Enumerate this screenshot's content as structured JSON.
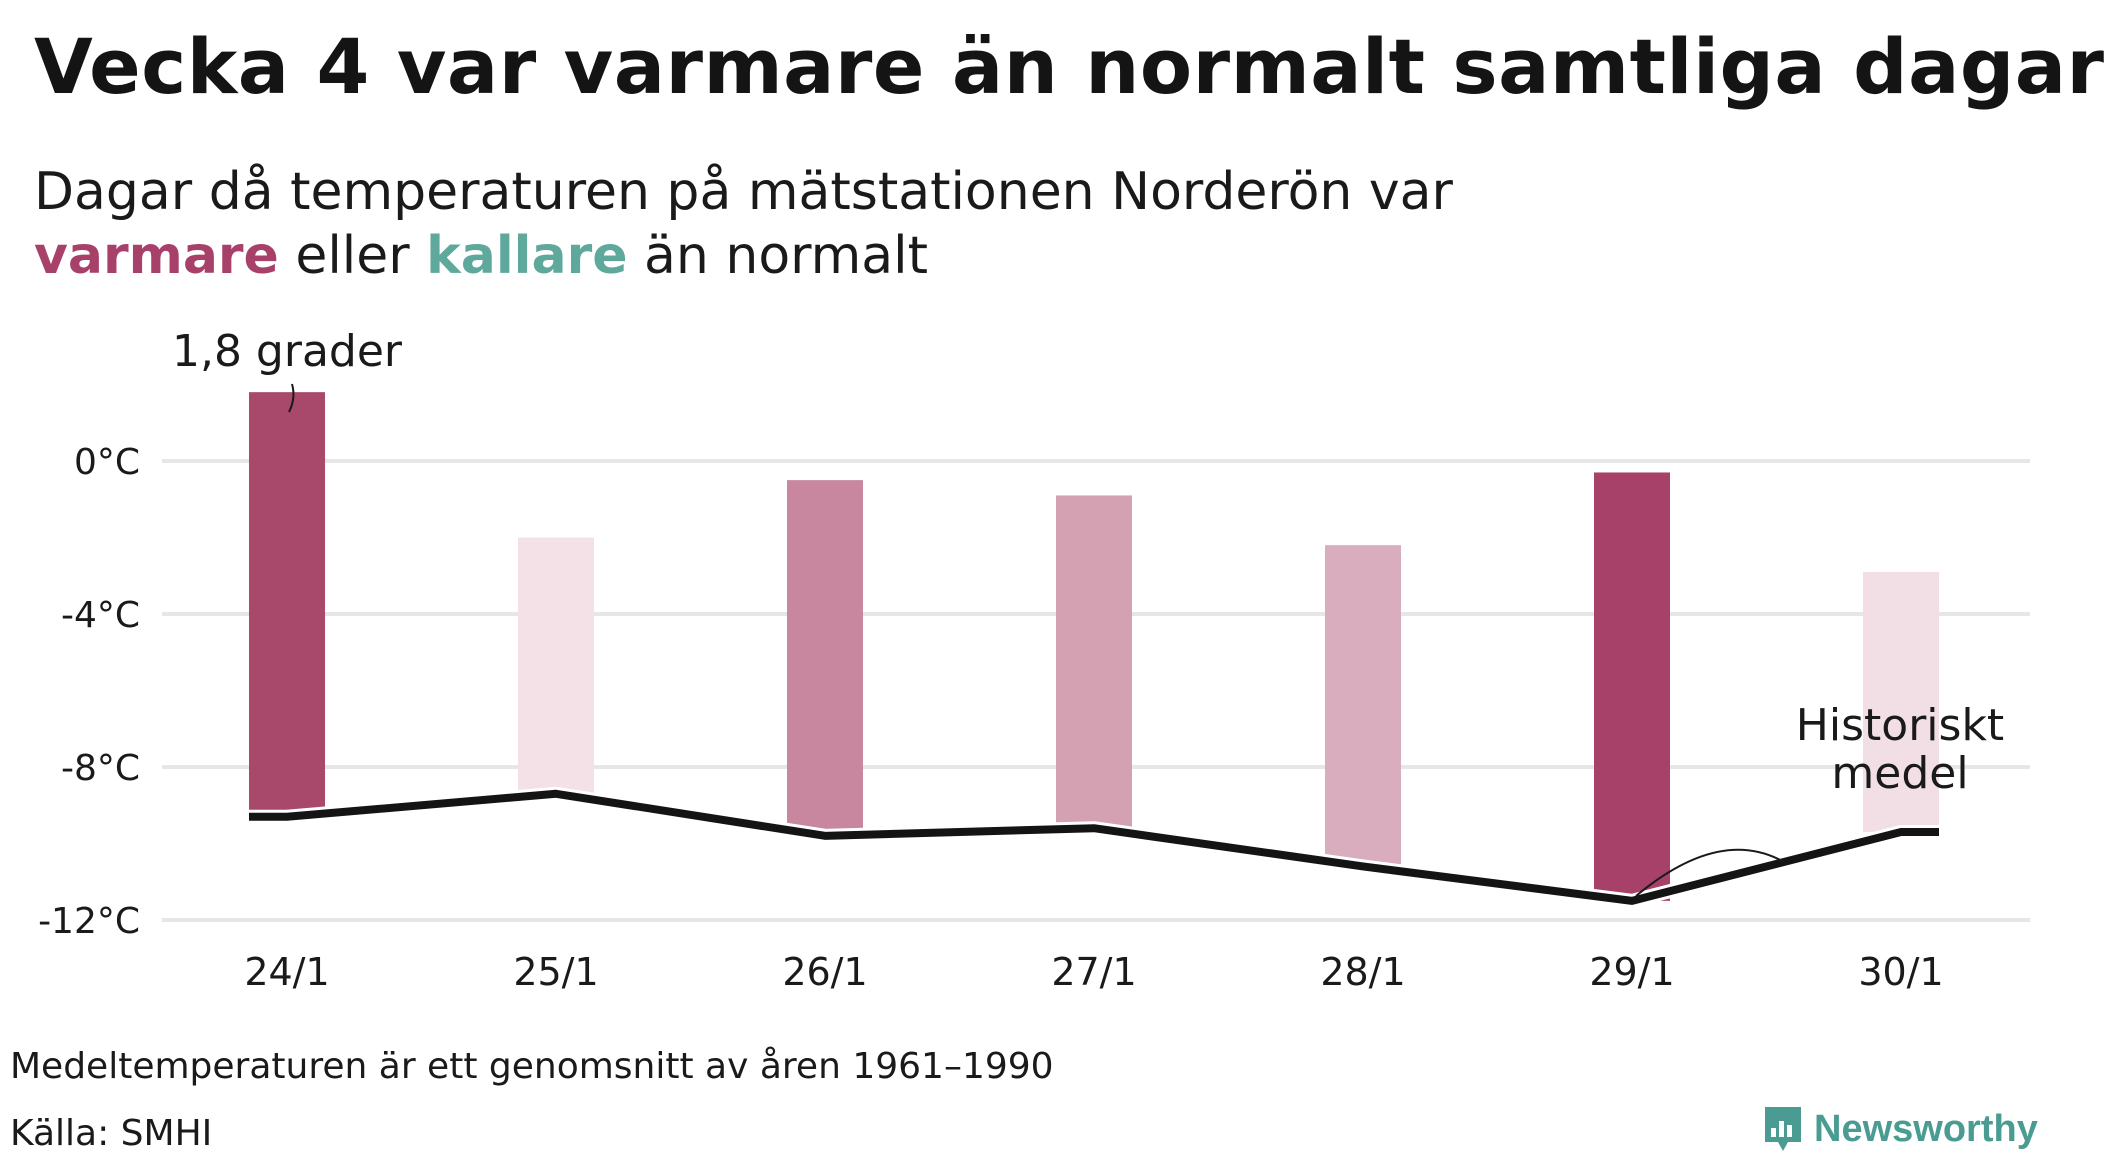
{
  "title": "Vecka 4 var varmare än normalt samtliga dagar",
  "subtitle": {
    "line1": "Dagar då temperaturen på mätstationen Norderön var",
    "warm_word": "varmare",
    "or_word": "eller",
    "cold_word": "kallare",
    "tail": "än normalt"
  },
  "colors": {
    "warm_text": "#a8416a",
    "cold_text": "#5fa89c",
    "mean_line": "#141414",
    "grid": "#e6e6e6"
  },
  "chart_data": {
    "type": "bar",
    "categories": [
      "24/1",
      "25/1",
      "26/1",
      "27/1",
      "28/1",
      "29/1",
      "30/1"
    ],
    "series": [
      {
        "values": [
          1.8,
          -2.0,
          -0.5,
          -0.9,
          -2.2,
          -0.3,
          -2.9
        ]
      },
      {
        "name": "Historiskt medel",
        "values": [
          -9.3,
          -8.7,
          -9.8,
          -9.6,
          -10.6,
          -11.5,
          -9.7
        ]
      }
    ],
    "bar_colors": [
      "#a8496c",
      "#f4e1e8",
      "#c8879f",
      "#d4a1b3",
      "#d9adbd",
      "#a7416a",
      "#f2dfe6"
    ],
    "yticks": [
      0,
      -4,
      -8,
      -12
    ],
    "ytick_labels": [
      "0°C",
      "-4°C",
      "-8°C",
      "-12°C"
    ],
    "ylim": [
      -12,
      2
    ],
    "grid": true,
    "annotations": {
      "top_bar": "1,8 grader",
      "mean_line_1": "Historiskt",
      "mean_line_2": "medel"
    }
  },
  "footer": {
    "note": "Medeltemperaturen är ett genomsnitt av åren 1961–1990",
    "source": "Källa: SMHI",
    "brand": "Newsworthy",
    "brand_color": "#4a9c92"
  }
}
